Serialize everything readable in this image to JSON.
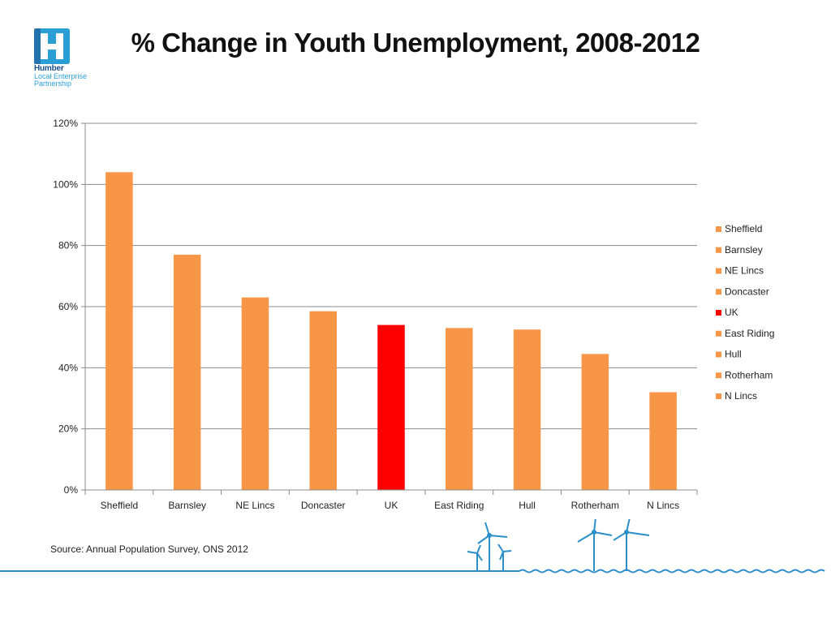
{
  "logo": {
    "name": "Humber",
    "subtitle_line1": "Local Enterprise",
    "subtitle_line2": "Partnership",
    "colors": {
      "dark": "#1b4f8c",
      "light": "#2a9fd6"
    }
  },
  "title": "% Change in Youth Unemployment, 2008-2012",
  "source": "Source: Annual Population Survey, ONS 2012",
  "chart_data": {
    "type": "bar",
    "title": "% Change in Youth Unemployment, 2008-2012",
    "xlabel": "",
    "ylabel": "",
    "categories": [
      "Sheffield",
      "Barnsley",
      "NE Lincs",
      "Doncaster",
      "UK",
      "East Riding",
      "Hull",
      "Rotherham",
      "N Lincs"
    ],
    "values": [
      104,
      77,
      63,
      58.5,
      54,
      53,
      52.5,
      44.5,
      32
    ],
    "value_unit": "%",
    "colors": [
      "#f79646",
      "#f79646",
      "#f79646",
      "#f79646",
      "#ff0000",
      "#f79646",
      "#f79646",
      "#f79646",
      "#f79646"
    ],
    "ylim": [
      0,
      120
    ],
    "yticks": [
      0,
      20,
      40,
      60,
      80,
      100,
      120
    ],
    "ytick_labels": [
      "0%",
      "20%",
      "40%",
      "60%",
      "80%",
      "100%",
      "120%"
    ],
    "grid": true,
    "legend_position": "right",
    "legend": [
      "Sheffield",
      "Barnsley",
      "NE Lincs",
      "Doncaster",
      "UK",
      "East Riding",
      "Hull",
      "Rotherham",
      "N Lincs"
    ]
  },
  "colors": {
    "bar": "#f79646",
    "highlight": "#ff0000",
    "gridline": "#8c8c8c",
    "footer_line": "#2a8fc9"
  }
}
